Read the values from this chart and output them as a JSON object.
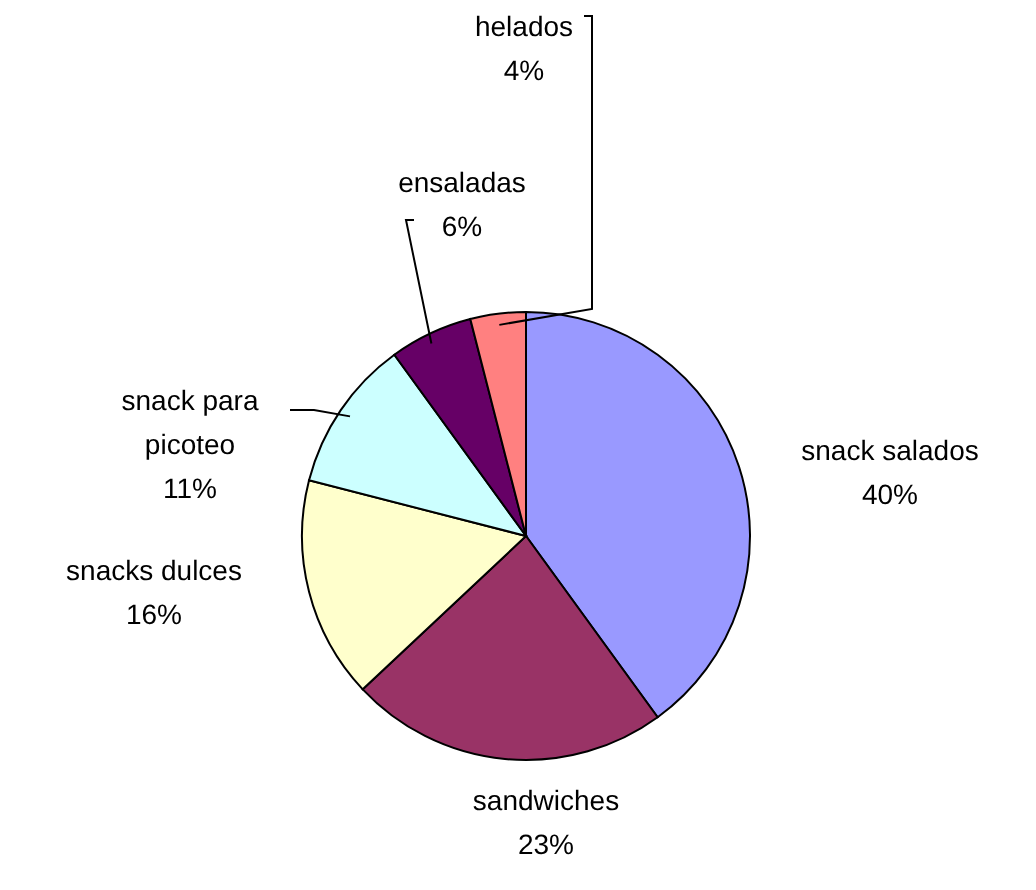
{
  "chart_data": {
    "type": "pie",
    "categories": [
      "snack salados",
      "sandwiches",
      "snacks dulces",
      "snack para picoteo",
      "ensaladas",
      "helados"
    ],
    "values": [
      40,
      23,
      16,
      11,
      6,
      4
    ],
    "value_labels": [
      "40%",
      "23%",
      "16%",
      "11%",
      "6%",
      "4%"
    ],
    "colors": [
      "#9999ff",
      "#993366",
      "#ffffcc",
      "#ccffff",
      "#660066",
      "#ff8080"
    ]
  }
}
